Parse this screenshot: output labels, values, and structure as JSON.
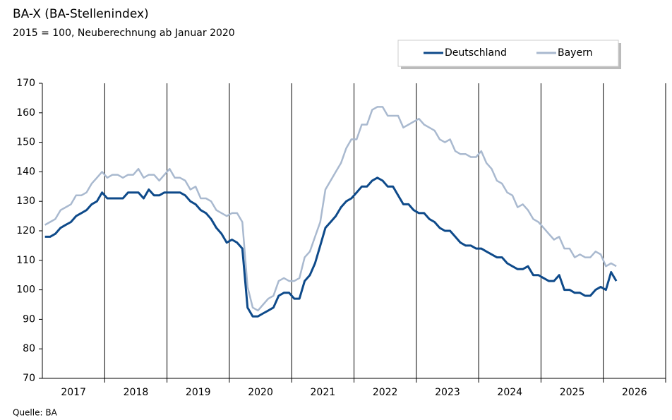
{
  "chart_data": {
    "type": "line",
    "title": "BA-X (BA-Stellenindex)",
    "subtitle": "2015 = 100, Neuberechnung  ab Januar 2020",
    "source": "Quelle: BA",
    "categories": [
      "2017",
      null,
      null,
      null,
      null,
      null,
      null,
      null,
      null,
      null,
      null,
      null,
      "2018",
      null,
      null,
      null,
      null,
      null,
      null,
      null,
      null,
      null,
      null,
      null,
      "2019",
      null,
      null,
      null,
      null,
      null,
      null,
      null,
      null,
      null,
      null,
      null,
      "2020",
      null,
      null,
      null,
      null,
      null,
      null,
      null,
      null,
      null,
      null,
      null,
      "2021",
      null,
      null,
      null,
      null,
      null,
      null,
      null,
      null,
      null,
      null,
      null,
      "2022",
      null,
      null,
      null,
      null,
      null,
      null,
      null,
      null,
      null,
      null,
      null,
      "2023",
      null,
      null,
      null,
      null,
      null,
      null,
      null,
      null,
      null,
      null,
      null,
      "2024",
      null,
      null,
      null,
      null,
      null,
      null,
      null,
      null,
      null,
      null,
      null,
      "2025",
      null,
      null,
      null,
      null,
      null,
      null,
      null,
      null,
      null,
      null,
      null,
      "2026",
      null,
      null
    ],
    "series": [
      {
        "name": "Deutschland",
        "color": "#0e4a8a",
        "values": [
          118,
          118,
          119,
          121,
          122,
          123,
          125,
          126,
          127,
          129,
          130,
          133,
          131,
          131,
          131,
          131,
          133,
          133,
          133,
          131,
          134,
          132,
          132,
          133,
          133,
          133,
          133,
          132,
          130,
          129,
          127,
          126,
          124,
          121,
          119,
          116,
          117,
          116,
          114,
          94,
          91,
          91,
          92,
          93,
          94,
          98,
          99,
          99,
          97,
          97,
          103,
          105,
          109,
          115,
          121,
          123,
          125,
          128,
          130,
          131,
          133,
          135,
          135,
          137,
          138,
          137,
          135,
          135,
          132,
          129,
          129,
          127,
          126,
          126,
          124,
          123,
          121,
          120,
          120,
          118,
          116,
          115,
          115,
          114,
          114,
          113,
          112,
          111,
          111,
          109,
          108,
          107,
          107,
          108,
          105,
          105,
          104,
          103,
          103,
          105,
          100,
          100,
          99,
          99,
          98,
          98,
          100,
          101,
          100,
          106,
          103
        ]
      },
      {
        "name": "Bayern",
        "color": "#a9b9cf",
        "values": [
          122,
          123,
          124,
          127,
          128,
          129,
          132,
          132,
          133,
          136,
          138,
          140,
          138,
          139,
          139,
          138,
          139,
          139,
          141,
          138,
          139,
          139,
          137,
          139,
          141,
          138,
          138,
          137,
          134,
          135,
          131,
          131,
          130,
          127,
          126,
          125,
          126,
          126,
          123,
          101,
          94,
          93,
          95,
          97,
          98,
          103,
          104,
          103,
          103,
          104,
          111,
          113,
          118,
          123,
          134,
          137,
          140,
          143,
          148,
          151,
          151,
          156,
          156,
          161,
          162,
          162,
          159,
          159,
          159,
          155,
          156,
          157,
          158,
          156,
          155,
          154,
          151,
          150,
          151,
          147,
          146,
          146,
          145,
          145,
          147,
          143,
          141,
          137,
          136,
          133,
          132,
          128,
          129,
          127,
          124,
          123,
          121,
          119,
          117,
          118,
          114,
          114,
          111,
          112,
          111,
          111,
          113,
          112,
          108,
          109,
          108
        ]
      }
    ],
    "ylim": [
      70,
      170
    ],
    "yticks": [
      70,
      80,
      90,
      100,
      110,
      120,
      130,
      140,
      150,
      160,
      170
    ],
    "legend": "top-right"
  }
}
